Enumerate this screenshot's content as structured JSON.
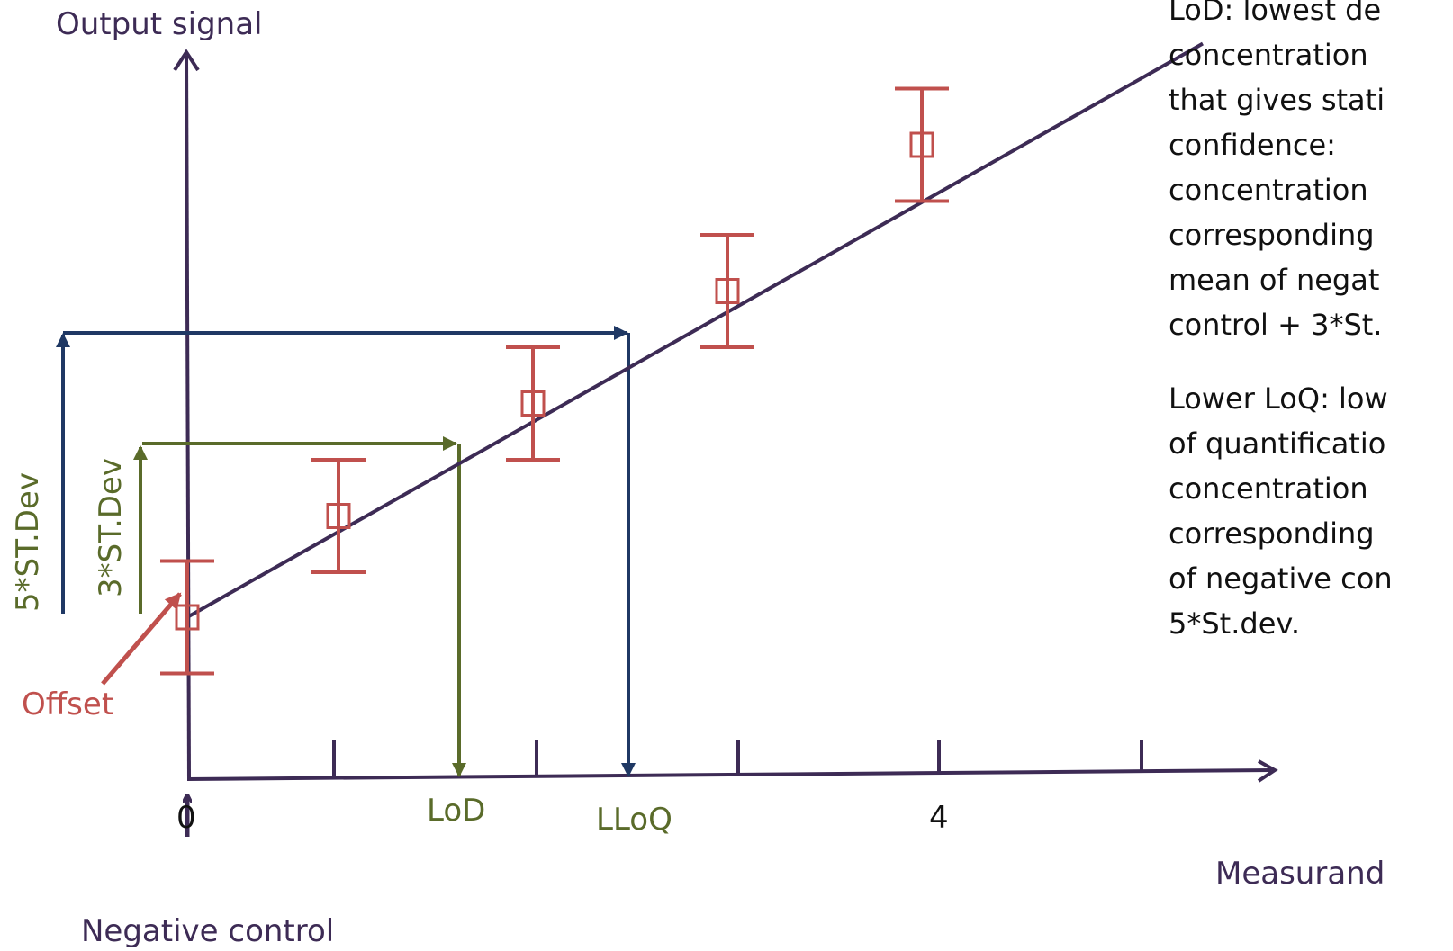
{
  "colors": {
    "axis": "#3d2b55",
    "blue": "#1f3864",
    "green": "#5a6b2a",
    "red": "#c0504d"
  },
  "labels": {
    "y_axis": "Output signal",
    "x_axis": "Measurand",
    "x_tick_0": "0",
    "x_tick_4": "4",
    "lod": "LoD",
    "lloq": "LLoQ",
    "negative_control": "Negative control",
    "offset": "Offset",
    "five_st_dev": "5*ST.Dev",
    "three_st_dev": "3*ST.Dev"
  },
  "definitions": {
    "lod_lines": [
      "LoD: lowest de",
      "concentration",
      "that gives stati",
      "confidence:",
      "concentration",
      "corresponding",
      "mean of negat",
      "control + 3*St."
    ],
    "lloq_lines": [
      "Lower LoQ: low",
      "of quantificatio",
      "concentration",
      "corresponding",
      "of negative con",
      "5*St.dev."
    ]
  },
  "chart_data": {
    "type": "scatter",
    "x_tick_values": [
      0,
      1,
      2,
      3,
      4,
      5
    ],
    "x_tick_labels": {
      "0": "0",
      "4": "4"
    },
    "points": [
      {
        "x": 0.0,
        "y": 0.0,
        "err": 0.5
      },
      {
        "x": 0.7,
        "y": 0.9,
        "err": 0.5
      },
      {
        "x": 1.6,
        "y": 1.9,
        "err": 0.5
      },
      {
        "x": 2.5,
        "y": 2.9,
        "err": 0.5
      },
      {
        "x": 3.4,
        "y": 4.2,
        "err": 0.5
      }
    ],
    "fit_line": {
      "x0": 0.0,
      "y0": 0.0,
      "x1": 4.7,
      "y1": 5.1
    },
    "lod": {
      "x": 1.3,
      "y": 1.55
    },
    "lloq": {
      "x": 2.1,
      "y": 2.6
    }
  }
}
